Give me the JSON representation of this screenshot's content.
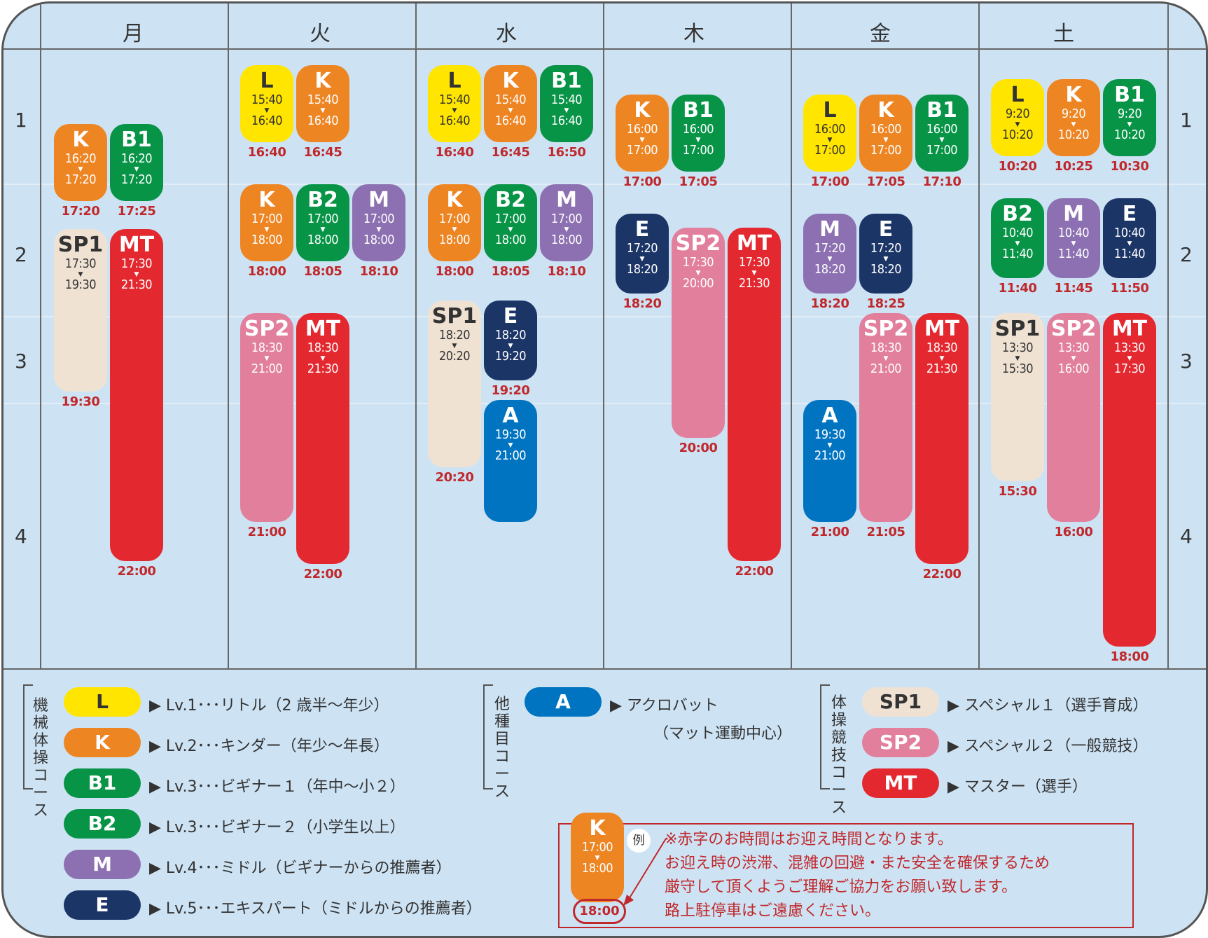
{
  "days": [
    "月",
    "火",
    "水",
    "木",
    "金",
    "土"
  ],
  "hours": [
    "1",
    "2",
    "3",
    "4"
  ],
  "colors": {
    "L": "#ffe500",
    "K": "#ee8523",
    "B1": "#079447",
    "B2": "#079447",
    "M": "#8c70b1",
    "E": "#1b3567",
    "A": "#0074c0",
    "SP1": "#efe2d3",
    "SP2": "#e17f9c",
    "MT": "#e3282f",
    "red": "#c0282b"
  },
  "blocks": [
    {
      "id": "mon-k",
      "code": "K",
      "start": "16:20",
      "end": "17:20",
      "pickup": "17:20"
    },
    {
      "id": "mon-b1",
      "code": "B1",
      "start": "16:20",
      "end": "17:20",
      "pickup": "17:25"
    },
    {
      "id": "mon-sp1",
      "code": "SP1",
      "start": "17:30",
      "end": "19:30",
      "pickup": "19:30"
    },
    {
      "id": "mon-mt",
      "code": "MT",
      "start": "17:30",
      "end": "21:30",
      "pickup": "22:00"
    },
    {
      "id": "tue-l",
      "code": "L",
      "start": "15:40",
      "end": "16:40",
      "pickup": "16:40"
    },
    {
      "id": "tue-k1",
      "code": "K",
      "start": "15:40",
      "end": "16:40",
      "pickup": "16:45"
    },
    {
      "id": "tue-k2",
      "code": "K",
      "start": "17:00",
      "end": "18:00",
      "pickup": "18:00"
    },
    {
      "id": "tue-b2",
      "code": "B2",
      "start": "17:00",
      "end": "18:00",
      "pickup": "18:05"
    },
    {
      "id": "tue-m",
      "code": "M",
      "start": "17:00",
      "end": "18:00",
      "pickup": "18:10"
    },
    {
      "id": "tue-sp2",
      "code": "SP2",
      "start": "18:30",
      "end": "21:00",
      "pickup": "21:00"
    },
    {
      "id": "tue-mt",
      "code": "MT",
      "start": "18:30",
      "end": "21:30",
      "pickup": "22:00"
    },
    {
      "id": "wed-l",
      "code": "L",
      "start": "15:40",
      "end": "16:40",
      "pickup": "16:40"
    },
    {
      "id": "wed-k1",
      "code": "K",
      "start": "15:40",
      "end": "16:40",
      "pickup": "16:45"
    },
    {
      "id": "wed-b1",
      "code": "B1",
      "start": "15:40",
      "end": "16:40",
      "pickup": "16:50"
    },
    {
      "id": "wed-k2",
      "code": "K",
      "start": "17:00",
      "end": "18:00",
      "pickup": "18:00"
    },
    {
      "id": "wed-b2",
      "code": "B2",
      "start": "17:00",
      "end": "18:00",
      "pickup": "18:05"
    },
    {
      "id": "wed-m",
      "code": "M",
      "start": "17:00",
      "end": "18:00",
      "pickup": "18:10"
    },
    {
      "id": "wed-sp1",
      "code": "SP1",
      "start": "18:20",
      "end": "20:20",
      "pickup": "20:20"
    },
    {
      "id": "wed-e",
      "code": "E",
      "start": "18:20",
      "end": "19:20",
      "pickup": "19:20"
    },
    {
      "id": "wed-a",
      "code": "A",
      "start": "19:30",
      "end": "21:00",
      "pickup": ""
    },
    {
      "id": "thu-k",
      "code": "K",
      "start": "16:00",
      "end": "17:00",
      "pickup": "17:00"
    },
    {
      "id": "thu-b1",
      "code": "B1",
      "start": "16:00",
      "end": "17:00",
      "pickup": "17:05"
    },
    {
      "id": "thu-e",
      "code": "E",
      "start": "17:20",
      "end": "18:20",
      "pickup": "18:20"
    },
    {
      "id": "thu-sp2",
      "code": "SP2",
      "start": "17:30",
      "end": "20:00",
      "pickup": "20:00"
    },
    {
      "id": "thu-mt",
      "code": "MT",
      "start": "17:30",
      "end": "21:30",
      "pickup": "22:00"
    },
    {
      "id": "fri-l",
      "code": "L",
      "start": "16:00",
      "end": "17:00",
      "pickup": "17:00"
    },
    {
      "id": "fri-k",
      "code": "K",
      "start": "16:00",
      "end": "17:00",
      "pickup": "17:05"
    },
    {
      "id": "fri-b1",
      "code": "B1",
      "start": "16:00",
      "end": "17:00",
      "pickup": "17:10"
    },
    {
      "id": "fri-m",
      "code": "M",
      "start": "17:20",
      "end": "18:20",
      "pickup": "18:20"
    },
    {
      "id": "fri-e",
      "code": "E",
      "start": "17:20",
      "end": "18:20",
      "pickup": "18:25"
    },
    {
      "id": "fri-a",
      "code": "A",
      "start": "19:30",
      "end": "21:00",
      "pickup": "21:00"
    },
    {
      "id": "fri-sp2",
      "code": "SP2",
      "start": "18:30",
      "end": "21:00",
      "pickup": "21:05"
    },
    {
      "id": "fri-mt",
      "code": "MT",
      "start": "18:30",
      "end": "21:30",
      "pickup": "22:00"
    },
    {
      "id": "sat-l",
      "code": "L",
      "start": "9:20",
      "end": "10:20",
      "pickup": "10:20"
    },
    {
      "id": "sat-k",
      "code": "K",
      "start": "9:20",
      "end": "10:20",
      "pickup": "10:25"
    },
    {
      "id": "sat-b1",
      "code": "B1",
      "start": "9:20",
      "end": "10:20",
      "pickup": "10:30"
    },
    {
      "id": "sat-b2",
      "code": "B2",
      "start": "10:40",
      "end": "11:40",
      "pickup": "11:40"
    },
    {
      "id": "sat-m",
      "code": "M",
      "start": "10:40",
      "end": "11:40",
      "pickup": "11:45"
    },
    {
      "id": "sat-e",
      "code": "E",
      "start": "10:40",
      "end": "11:40",
      "pickup": "11:50"
    },
    {
      "id": "sat-sp1",
      "code": "SP1",
      "start": "13:30",
      "end": "15:30",
      "pickup": "15:30"
    },
    {
      "id": "sat-sp2",
      "code": "SP2",
      "start": "13:30",
      "end": "16:00",
      "pickup": "16:00"
    },
    {
      "id": "sat-mt",
      "code": "MT",
      "start": "13:30",
      "end": "17:30",
      "pickup": "18:00"
    }
  ],
  "legend": {
    "group1_title": "機械体操コース",
    "group2_title": "他種目コース",
    "group3_title": "体操競技コース",
    "items": [
      {
        "code": "L",
        "text": "▶ Lv.1･･･リトル（2 歳半〜年少）"
      },
      {
        "code": "K",
        "text": "▶ Lv.2･･･キンダー（年少〜年長）"
      },
      {
        "code": "B1",
        "text": "▶ Lv.3･･･ビギナー１（年中〜小２）"
      },
      {
        "code": "B2",
        "text": "▶ Lv.3･･･ビギナー２（小学生以上）"
      },
      {
        "code": "M",
        "text": "▶ Lv.4･･･ミドル（ビギナーからの推薦者）"
      },
      {
        "code": "E",
        "text": "▶ Lv.5･･･エキスパート（ミドルからの推薦者）"
      },
      {
        "code": "A",
        "text": "▶ アクロバット"
      },
      {
        "code": "A_sub",
        "text": "（マット運動中心）"
      },
      {
        "code": "SP1",
        "text": "▶ スペシャル１（選手育成）"
      },
      {
        "code": "SP2",
        "text": "▶ スペシャル２（一般競技）"
      },
      {
        "code": "MT",
        "text": "▶ マスター（選手）"
      }
    ]
  },
  "example": {
    "code": "K",
    "start": "17:00",
    "end": "18:00",
    "pickup": "18:00",
    "tag": "例",
    "lines": [
      "※赤字のお時間はお迎え時間となります。",
      "お迎え時の渋滞、混雑の回避・また安全を確保するため",
      "厳守して頂くようご理解ご協力をお願い致します。",
      "路上駐停車はご遠慮ください。"
    ]
  }
}
